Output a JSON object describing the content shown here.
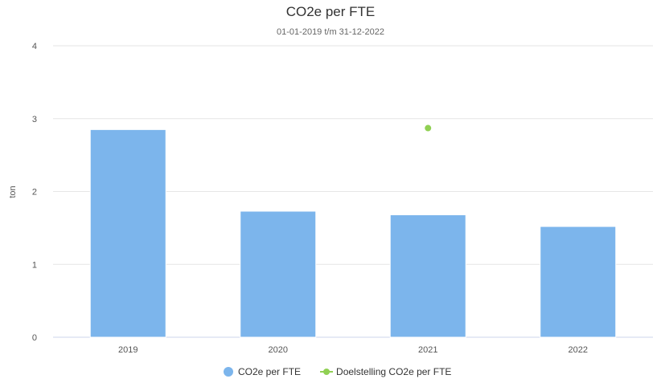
{
  "chart_data": {
    "type": "bar",
    "title": "CO2e per FTE",
    "subtitle": "01-01-2019 t/m 31-12-2022",
    "ylabel": "ton",
    "ylim": [
      0,
      4
    ],
    "yticks": [
      "0",
      "1",
      "2",
      "3",
      "4"
    ],
    "categories": [
      "2019",
      "2020",
      "2021",
      "2022"
    ],
    "series": [
      {
        "name": "CO2e per FTE",
        "kind": "bar",
        "color": "#7cb5ec",
        "values": [
          2.85,
          1.73,
          1.68,
          1.52
        ]
      },
      {
        "name": "Doelstelling CO2e per FTE",
        "kind": "point",
        "color": "#90d053",
        "values": [
          null,
          null,
          2.87,
          null
        ]
      }
    ],
    "grid": true,
    "legend": "bottom-center"
  }
}
